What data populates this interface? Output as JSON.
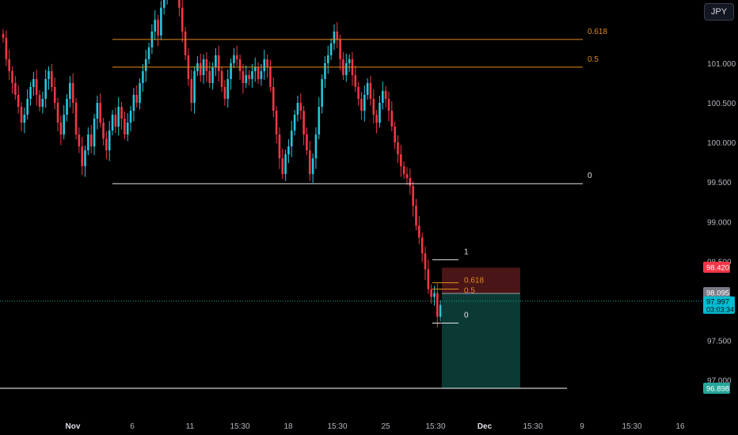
{
  "currency_button": "JPY",
  "colors": {
    "background": "#000000",
    "up": "#26c6da",
    "down": "#f23645",
    "fib": "#e08a1e",
    "white_line": "#e6e6e6",
    "stop_zone": "#4a1517",
    "target_zone": "#0b3a35",
    "axis_text": "#b2b5be",
    "current_price_line": "#26a69a"
  },
  "price_scale": {
    "ticks": [
      "101.000",
      "100.500",
      "100.000",
      "99.500",
      "99.000",
      "98.500",
      "97.500",
      "97.000"
    ],
    "badges": {
      "stop": {
        "value": "98.420",
        "color": "#f23645"
      },
      "entry": {
        "value": "98.095",
        "color": "#787b86"
      },
      "current": {
        "value": "97.997",
        "countdown": "03:03:34",
        "color": "#00bcd4"
      },
      "target": {
        "value": "96.898",
        "color": "#26a69a"
      }
    }
  },
  "time_axis": {
    "labels": [
      "Nov",
      "6",
      "11",
      "15:30",
      "18",
      "15:30",
      "25",
      "15:30",
      "Dec",
      "15:30",
      "9",
      "15:30",
      "16"
    ]
  },
  "chart_data": {
    "type": "candlestick",
    "title": "",
    "ylim": [
      96.8,
      101.5
    ],
    "fib_upper": {
      "levels": [
        "0.618",
        "0.5",
        "0"
      ],
      "prices": [
        101.3,
        100.95,
        99.48
      ]
    },
    "fib_lower": {
      "levels": [
        "1",
        "0.618",
        "0.5",
        "0"
      ],
      "prices": [
        98.52,
        98.23,
        98.15,
        97.72
      ]
    },
    "horizontal_line": 96.898,
    "position": {
      "entry": 98.095,
      "stop": 98.42,
      "target": 96.898
    },
    "last_price": 97.997,
    "candles_close": [
      101.32,
      101.05,
      100.9,
      100.75,
      100.6,
      100.45,
      100.25,
      100.35,
      100.55,
      100.7,
      100.8,
      100.6,
      100.45,
      100.55,
      100.8,
      100.9,
      100.7,
      100.5,
      100.25,
      100.1,
      100.35,
      100.55,
      100.75,
      100.5,
      100.1,
      99.95,
      99.7,
      99.9,
      100.1,
      99.95,
      100.3,
      100.5,
      100.25,
      100.05,
      99.9,
      100.15,
      100.35,
      100.2,
      100.45,
      100.3,
      100.1,
      100.25,
      100.4,
      100.6,
      100.5,
      100.75,
      100.9,
      101.05,
      101.2,
      101.4,
      101.55,
      101.35,
      101.7,
      101.85,
      102.0,
      102.15,
      101.95,
      102.1,
      101.7,
      101.4,
      101.1,
      100.8,
      100.5,
      100.9,
      101.0,
      100.85,
      101.05,
      100.9,
      100.75,
      100.95,
      101.1,
      100.9,
      100.7,
      100.55,
      100.8,
      101.0,
      101.1,
      101.05,
      100.9,
      100.75,
      100.85,
      100.8,
      100.9,
      100.95,
      100.8,
      100.9,
      101.05,
      100.95,
      100.7,
      100.4,
      100.1,
      99.8,
      99.6,
      99.85,
      99.95,
      100.15,
      100.35,
      100.5,
      100.4,
      100.1,
      99.9,
      99.6,
      99.8,
      100.1,
      100.45,
      100.8,
      101.0,
      101.1,
      101.25,
      101.4,
      101.3,
      101.05,
      100.85,
      101.0,
      101.05,
      100.85,
      100.7,
      100.55,
      100.4,
      100.6,
      100.75,
      100.55,
      100.35,
      100.25,
      100.5,
      100.65,
      100.55,
      100.4,
      100.2,
      100.0,
      99.85,
      99.7,
      99.6,
      99.55,
      99.45,
      99.2,
      98.95,
      98.8,
      98.6,
      98.4,
      98.15,
      98.05,
      98.1,
      97.8,
      97.95,
      98.0
    ]
  }
}
